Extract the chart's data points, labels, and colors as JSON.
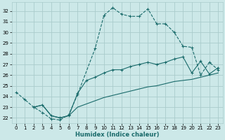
{
  "xlabel": "Humidex (Indice chaleur)",
  "bg_color": "#cce8e8",
  "grid_color": "#aacccc",
  "line_color": "#1a6b6b",
  "xlim": [
    -0.5,
    23.5
  ],
  "ylim": [
    21.5,
    32.8
  ],
  "xticks": [
    0,
    1,
    2,
    3,
    4,
    5,
    6,
    7,
    8,
    9,
    10,
    11,
    12,
    13,
    14,
    15,
    16,
    17,
    18,
    19,
    20,
    21,
    22,
    23
  ],
  "yticks": [
    22,
    23,
    24,
    25,
    26,
    27,
    28,
    29,
    30,
    31,
    32
  ],
  "curve1_x": [
    0,
    1,
    2,
    3,
    4,
    5,
    6,
    7,
    9,
    10,
    11,
    12,
    13,
    14,
    15,
    16,
    17,
    18,
    19,
    20,
    21,
    22,
    23
  ],
  "curve1_y": [
    24.4,
    23.7,
    23.0,
    22.5,
    21.9,
    21.8,
    22.3,
    24.2,
    28.5,
    31.6,
    32.3,
    31.7,
    31.5,
    31.5,
    32.2,
    30.8,
    30.8,
    30.0,
    28.7,
    28.6,
    26.0,
    27.2,
    26.5
  ],
  "curve2_x": [
    2,
    3,
    4,
    5,
    6,
    7,
    8,
    9,
    10,
    11,
    12,
    13,
    14,
    15,
    16,
    17,
    18,
    19,
    20,
    21,
    22,
    23
  ],
  "curve2_y": [
    23.0,
    23.2,
    22.2,
    22.0,
    22.2,
    24.3,
    25.5,
    25.8,
    26.2,
    26.5,
    26.5,
    26.8,
    27.0,
    27.2,
    27.0,
    27.2,
    27.5,
    27.7,
    26.2,
    27.3,
    26.1,
    26.7
  ],
  "curve3_x": [
    2,
    3,
    4,
    5,
    6,
    7,
    8,
    9,
    10,
    11,
    12,
    13,
    14,
    15,
    16,
    17,
    18,
    19,
    20,
    21,
    22,
    23
  ],
  "curve3_y": [
    23.0,
    23.2,
    22.2,
    22.0,
    22.2,
    23.0,
    23.3,
    23.6,
    23.9,
    24.1,
    24.3,
    24.5,
    24.7,
    24.9,
    25.0,
    25.2,
    25.4,
    25.5,
    25.6,
    25.8,
    26.0,
    26.2
  ]
}
